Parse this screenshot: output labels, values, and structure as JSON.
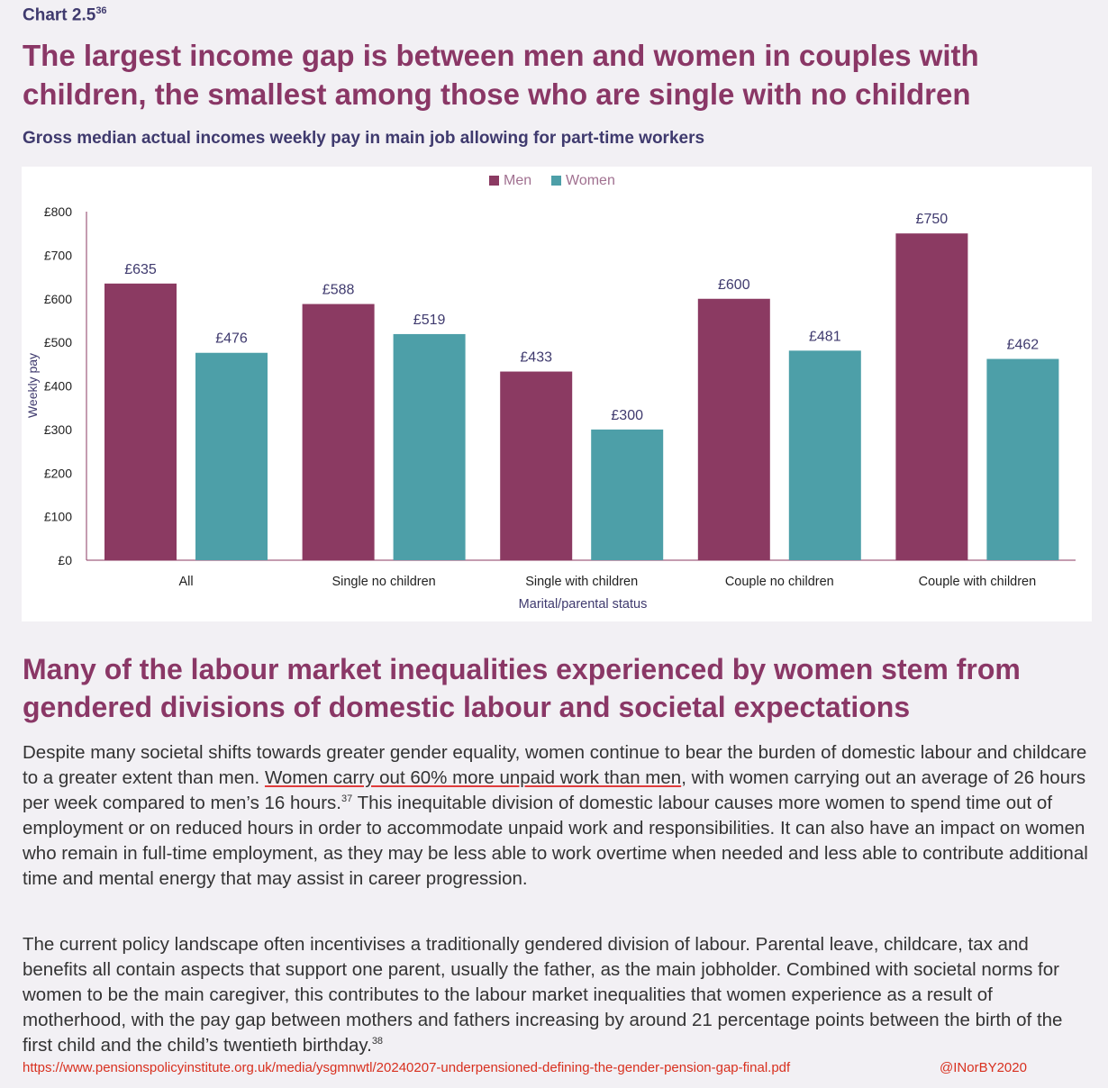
{
  "header": {
    "chart_label": "Chart 2.5",
    "chart_label_sup": "36",
    "headline": "The largest income gap is between men and women in couples with children, the smallest among those who are single with no children",
    "subtitle": "Gross median actual incomes weekly pay in main job allowing for part-time workers"
  },
  "colors": {
    "men": "#8b3a62",
    "women": "#4d9fa8",
    "axis_text": "#3f3a6e"
  },
  "chart_data": {
    "type": "bar",
    "categories": [
      "All",
      "Single no children",
      "Single with children",
      "Couple no children",
      "Couple with children"
    ],
    "series": [
      {
        "name": "Men",
        "values": [
          635,
          588,
          433,
          600,
          750
        ],
        "labels": [
          "£635",
          "£588",
          "£433",
          "£600",
          "£750"
        ]
      },
      {
        "name": "Women",
        "values": [
          476,
          519,
          300,
          481,
          462
        ],
        "labels": [
          "£476",
          "£519",
          "£300",
          "£481",
          "£462"
        ]
      }
    ],
    "ylabel": "Weekly pay",
    "xlabel": "Marital/parental status",
    "ylim": [
      0,
      800
    ],
    "yticks": [
      0,
      100,
      200,
      300,
      400,
      500,
      600,
      700,
      800
    ],
    "ytick_labels": [
      "£0",
      "£100",
      "£200",
      "£300",
      "£400",
      "£500",
      "£600",
      "£700",
      "£800"
    ],
    "legend": "top-center",
    "grid": false
  },
  "section": {
    "headline": "Many of the labour market inequalities experienced by women stem from gendered divisions of domestic labour and societal expectations",
    "para1_a": "Despite many societal shifts towards greater gender equality, women continue to bear the burden of domestic labour and childcare to a greater extent than men. ",
    "para1_underlined": "Women carry out 60% more unpaid work than men",
    "para1_b": ", with women carrying out an average of 26 hours per week compared to men’s 16 hours.",
    "para1_sup": "37",
    "para1_c": "  This inequitable division of domestic labour causes more women to spend time out of employment or on reduced hours in order to accommodate unpaid work and responsibilities. It can also have an impact on women who remain in full-time employment, as they may be less able to work overtime when needed and less able to contribute additional time and mental energy that may assist in career progression.",
    "para2": "The current policy landscape often incentivises a traditionally gendered division of labour. Parental leave, childcare, tax and benefits all contain aspects that support one parent, usually the father, as the main jobholder. Combined with societal norms for women to be the main caregiver, this contributes to the labour market inequalities that women experience as a result of motherhood, with the pay gap between mothers and fathers increasing by around 21 percentage points between the birth of the first child and the child’s twentieth birthday.",
    "para2_sup": "38"
  },
  "footer": {
    "source_url": "https://www.pensionspolicyinstitute.org.uk/media/ysgmnwtl/20240207-underpensioned-defining-the-gender-pension-gap-final.pdf",
    "handle": "@INorBY2020"
  }
}
